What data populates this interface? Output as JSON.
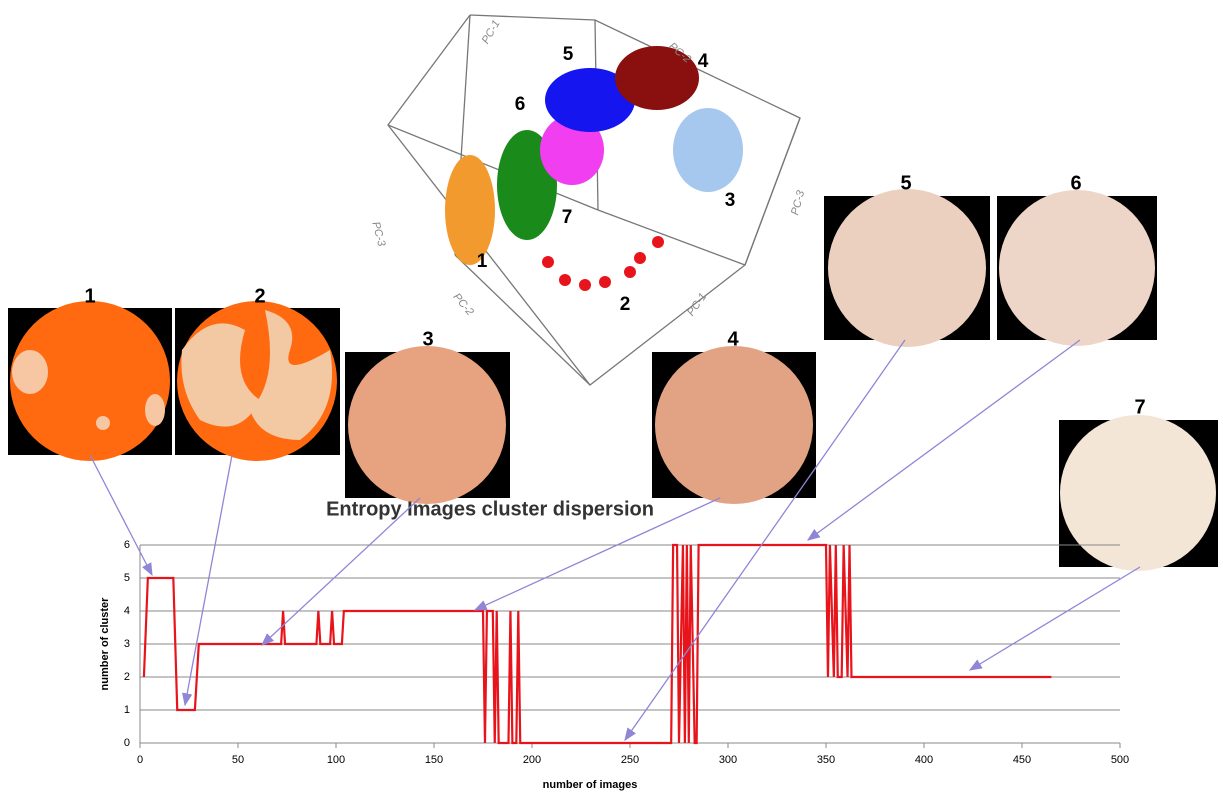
{
  "chart_data": {
    "type": "line",
    "title": "Entropy Images cluster dispersion",
    "x_label": "number of images",
    "y_label": "number of cluster",
    "x": [
      2,
      4,
      17,
      19,
      28,
      30,
      72,
      73,
      74,
      90,
      91,
      92,
      97,
      98,
      99,
      103,
      104,
      175,
      176,
      177,
      180,
      181,
      182,
      183,
      188,
      189,
      190,
      192,
      193,
      194,
      271,
      272,
      274,
      275,
      277,
      278,
      279,
      280,
      281,
      283,
      284,
      285,
      350,
      351,
      352,
      354,
      355,
      356,
      358,
      359,
      361,
      362,
      363,
      465
    ],
    "values": [
      2,
      5,
      5,
      1,
      1,
      3,
      3,
      4,
      3,
      3,
      4,
      3,
      3,
      4,
      3,
      3,
      4,
      4,
      0,
      4,
      4,
      0,
      4,
      0,
      0,
      4,
      0,
      0,
      4,
      0,
      0,
      6,
      6,
      0,
      6,
      0,
      6,
      0,
      6,
      0,
      0,
      6,
      6,
      2,
      6,
      2,
      6,
      2,
      2,
      6,
      2,
      6,
      2,
      2
    ],
    "color": "#e8141b",
    "xlim": [
      0,
      500
    ],
    "xticks": [
      0,
      50,
      100,
      150,
      200,
      250,
      300,
      350,
      400,
      450,
      500
    ],
    "ylim": [
      0,
      6
    ],
    "yticks": [
      0,
      1,
      2,
      3,
      4,
      5,
      6
    ],
    "grid": true
  },
  "dish_images": [
    {
      "label": "1"
    },
    {
      "label": "2"
    },
    {
      "label": "3"
    },
    {
      "label": "4"
    },
    {
      "label": "5"
    },
    {
      "label": "6"
    },
    {
      "label": "7"
    }
  ],
  "pca_plot": {
    "cluster_labels": [
      "5",
      "4",
      "6",
      "7",
      "3",
      "1",
      "2"
    ],
    "axis_labels": [
      "PC-1",
      "PC-2",
      "PC-3",
      "PC-3",
      "PC-2",
      "PC-1"
    ]
  }
}
